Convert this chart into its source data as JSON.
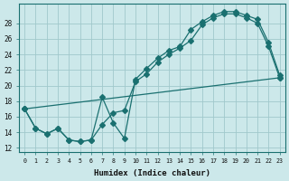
{
  "title": "",
  "xlabel": "Humidex (Indice chaleur)",
  "bg_color": "#cce8ea",
  "line_color": "#1a7070",
  "grid_color": "#a0c8cc",
  "xlim": [
    -0.5,
    23.5
  ],
  "ylim": [
    11.5,
    30.5
  ],
  "xticks": [
    0,
    1,
    2,
    3,
    4,
    5,
    6,
    7,
    8,
    9,
    10,
    11,
    12,
    13,
    14,
    15,
    16,
    17,
    18,
    19,
    20,
    21,
    22,
    23
  ],
  "yticks": [
    12,
    14,
    16,
    18,
    20,
    22,
    24,
    26,
    28
  ],
  "line1_x": [
    0,
    1,
    2,
    3,
    4,
    5,
    6,
    7,
    8,
    9,
    10,
    11,
    12,
    13,
    14,
    15,
    16,
    17,
    18,
    19,
    20,
    21,
    22,
    23
  ],
  "line1_y": [
    17.0,
    14.5,
    13.8,
    14.5,
    13.0,
    12.8,
    13.0,
    18.5,
    15.2,
    13.2,
    20.8,
    22.2,
    23.5,
    24.5,
    25.0,
    27.2,
    28.2,
    29.0,
    29.5,
    29.5,
    29.0,
    28.5,
    25.5,
    21.3
  ],
  "line2_x": [
    0,
    1,
    2,
    3,
    4,
    5,
    6,
    7,
    8,
    9,
    10,
    11,
    12,
    13,
    14,
    15,
    16,
    17,
    18,
    19,
    20,
    21,
    22,
    23
  ],
  "line2_y": [
    17.0,
    14.5,
    13.8,
    14.5,
    13.0,
    12.8,
    13.0,
    15.0,
    16.5,
    16.8,
    20.5,
    21.5,
    23.0,
    24.0,
    24.8,
    25.8,
    27.8,
    28.7,
    29.2,
    29.2,
    28.7,
    28.0,
    25.0,
    21.0
  ],
  "line3_x": [
    0,
    23
  ],
  "line3_y": [
    17.0,
    21.0
  ],
  "markersize": 3.0
}
